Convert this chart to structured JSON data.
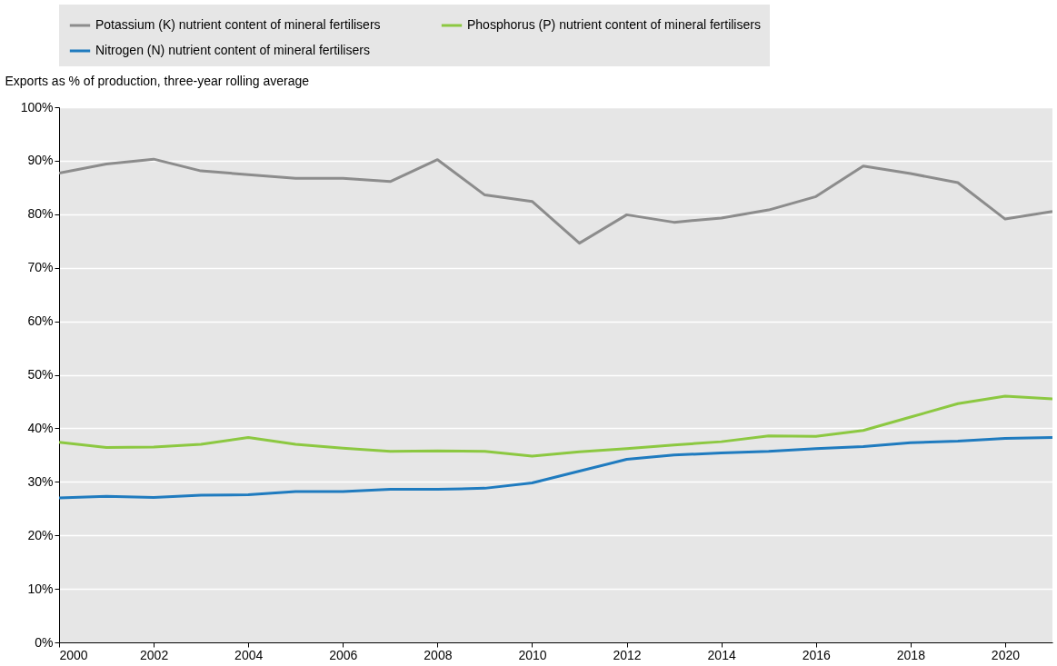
{
  "chart_data": {
    "type": "line",
    "ylabel": "Exports as % of production, three-year rolling average",
    "x": [
      2000,
      2001,
      2002,
      2003,
      2004,
      2005,
      2006,
      2007,
      2008,
      2009,
      2010,
      2011,
      2012,
      2013,
      2014,
      2015,
      2016,
      2017,
      2018,
      2019,
      2020,
      2021
    ],
    "series": [
      {
        "name": "Potassium (K) nutrient content of mineral fertilisers",
        "color": "#8c8c8c",
        "values": [
          87.7,
          89.4,
          90.3,
          88.1,
          87.4,
          86.7,
          86.7,
          86.1,
          90.2,
          83.6,
          82.4,
          74.6,
          79.9,
          78.5,
          79.3,
          80.8,
          83.3,
          89.0,
          87.6,
          85.9,
          79.1,
          80.5
        ]
      },
      {
        "name": "Phosphorus (P) nutrient content of mineral fertilisers",
        "color": "#8cc841",
        "values": [
          37.4,
          36.4,
          36.5,
          37.0,
          38.3,
          37.0,
          36.3,
          35.7,
          35.8,
          35.7,
          34.8,
          35.6,
          36.2,
          36.9,
          37.5,
          38.6,
          38.5,
          39.6,
          42.1,
          44.6,
          46.0,
          45.5
        ]
      },
      {
        "name": "Nitrogen (N) nutrient content of mineral fertilisers",
        "color": "#1f7bbf",
        "values": [
          27.0,
          27.3,
          27.1,
          27.5,
          27.6,
          28.2,
          28.2,
          28.6,
          28.6,
          28.8,
          29.8,
          32.0,
          34.2,
          35.0,
          35.4,
          35.7,
          36.2,
          36.6,
          37.3,
          37.6,
          38.1,
          38.3
        ]
      }
    ],
    "xlim": [
      2000,
      2021
    ],
    "xticks": [
      2000,
      2002,
      2004,
      2006,
      2008,
      2010,
      2012,
      2014,
      2016,
      2018,
      2020
    ],
    "ylim": [
      0,
      100
    ],
    "yticks": [
      {
        "value": 0,
        "label": "0%"
      },
      {
        "value": 10,
        "label": "10%"
      },
      {
        "value": 20,
        "label": "20%"
      },
      {
        "value": 30,
        "label": "30%"
      },
      {
        "value": 40,
        "label": "40%"
      },
      {
        "value": 50,
        "label": "50%"
      },
      {
        "value": 60,
        "label": "60%"
      },
      {
        "value": 70,
        "label": "70%"
      },
      {
        "value": 80,
        "label": "80%"
      },
      {
        "value": 90,
        "label": "90%"
      },
      {
        "value": 100,
        "label": "100%"
      }
    ],
    "grid": "y",
    "legend": "top",
    "marker": "none",
    "line_style": "solid"
  }
}
